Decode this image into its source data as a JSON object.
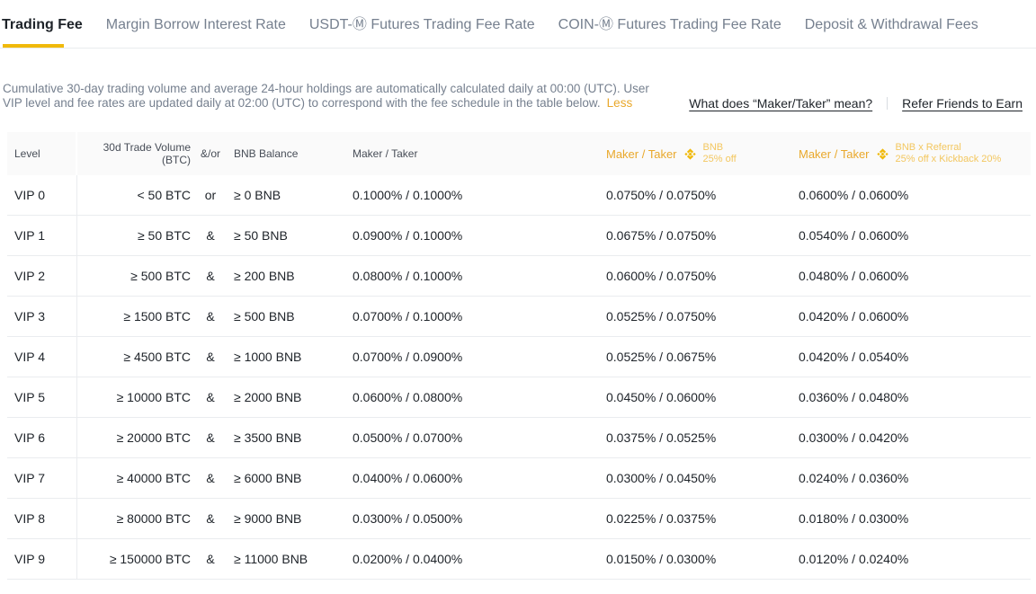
{
  "tabs": [
    {
      "id": "trading-fee",
      "label": "Trading Fee",
      "active": true
    },
    {
      "id": "margin-borrow-interest-rate",
      "label": "Margin Borrow Interest Rate",
      "active": false
    },
    {
      "id": "usdt-futures-trading-fee-rate",
      "label": "USDT-Ⓜ Futures Trading Fee Rate",
      "active": false
    },
    {
      "id": "coin-futures-trading-fee-rate",
      "label": "COIN-Ⓜ Futures Trading Fee Rate",
      "active": false
    },
    {
      "id": "deposit-withdrawal-fees",
      "label": "Deposit & Withdrawal Fees",
      "active": false
    }
  ],
  "notice": {
    "text": "Cumulative 30-day trading volume and average 24-hour holdings are automatically calculated daily at 00:00 (UTC). User VIP level and fee rates are updated daily at 02:00 (UTC) to correspond with the fee schedule in the table below.",
    "less_label": "Less"
  },
  "links": {
    "maker_taker": "What does “Maker/Taker” mean?",
    "refer": "Refer Friends to Earn"
  },
  "table": {
    "columns": {
      "level": "Level",
      "volume": "30d Trade Volume (BTC)",
      "andor": "&/or",
      "balance": "BNB Balance",
      "maker_taker": "Maker / Taker",
      "bnb_discount": {
        "label": "Maker / Taker",
        "icon": "bnb-logo",
        "line1": "BNB",
        "line2": "25% off"
      },
      "bnb_referral": {
        "label": "Maker / Taker",
        "icon": "bnb-logo",
        "line1": "BNB x Referral",
        "line2": "25% off x Kickback 20%"
      }
    },
    "rows": [
      {
        "level": "VIP 0",
        "volume": "< 50 BTC",
        "andor": "or",
        "balance": "≥ 0 BNB",
        "maker_taker": "0.1000% / 0.1000%",
        "bnb_discount": "0.0750% / 0.0750%",
        "bnb_referral": "0.0600% / 0.0600%"
      },
      {
        "level": "VIP 1",
        "volume": "≥ 50 BTC",
        "andor": "&",
        "balance": "≥ 50 BNB",
        "maker_taker": "0.0900% / 0.1000%",
        "bnb_discount": "0.0675% / 0.0750%",
        "bnb_referral": "0.0540% / 0.0600%"
      },
      {
        "level": "VIP 2",
        "volume": "≥ 500 BTC",
        "andor": "&",
        "balance": "≥ 200 BNB",
        "maker_taker": "0.0800% / 0.1000%",
        "bnb_discount": "0.0600% / 0.0750%",
        "bnb_referral": "0.0480% / 0.0600%"
      },
      {
        "level": "VIP 3",
        "volume": "≥ 1500 BTC",
        "andor": "&",
        "balance": "≥ 500 BNB",
        "maker_taker": "0.0700% / 0.1000%",
        "bnb_discount": "0.0525% / 0.0750%",
        "bnb_referral": "0.0420% / 0.0600%"
      },
      {
        "level": "VIP 4",
        "volume": "≥ 4500 BTC",
        "andor": "&",
        "balance": "≥ 1000 BNB",
        "maker_taker": "0.0700% / 0.0900%",
        "bnb_discount": "0.0525% / 0.0675%",
        "bnb_referral": "0.0420% / 0.0540%"
      },
      {
        "level": "VIP 5",
        "volume": "≥ 10000 BTC",
        "andor": "&",
        "balance": "≥ 2000 BNB",
        "maker_taker": "0.0600% / 0.0800%",
        "bnb_discount": "0.0450% / 0.0600%",
        "bnb_referral": "0.0360% / 0.0480%"
      },
      {
        "level": "VIP 6",
        "volume": "≥ 20000 BTC",
        "andor": "&",
        "balance": "≥ 3500 BNB",
        "maker_taker": "0.0500% / 0.0700%",
        "bnb_discount": "0.0375% / 0.0525%",
        "bnb_referral": "0.0300% / 0.0420%"
      },
      {
        "level": "VIP 7",
        "volume": "≥ 40000 BTC",
        "andor": "&",
        "balance": "≥ 6000 BNB",
        "maker_taker": "0.0400% / 0.0600%",
        "bnb_discount": "0.0300% / 0.0450%",
        "bnb_referral": "0.0240% / 0.0360%"
      },
      {
        "level": "VIP 8",
        "volume": "≥ 80000 BTC",
        "andor": "&",
        "balance": "≥ 9000 BNB",
        "maker_taker": "0.0300% / 0.0500%",
        "bnb_discount": "0.0225% / 0.0375%",
        "bnb_referral": "0.0180% / 0.0300%"
      },
      {
        "level": "VIP 9",
        "volume": "≥ 150000 BTC",
        "andor": "&",
        "balance": "≥ 11000 BNB",
        "maker_taker": "0.0200% / 0.0400%",
        "bnb_discount": "0.0150% / 0.0300%",
        "bnb_referral": "0.0120% / 0.0240%"
      }
    ]
  },
  "colors": {
    "brand_yellow": "#F0B90B",
    "yellow_header_text": "#E9A82B",
    "yellow_header_sub": "#F3C75F",
    "text_dark": "#1E2329",
    "text_gray": "#76808F",
    "table_header_text": "#474D57",
    "table_header_bg": "#FAFAFA",
    "border": "#EAECEF"
  }
}
